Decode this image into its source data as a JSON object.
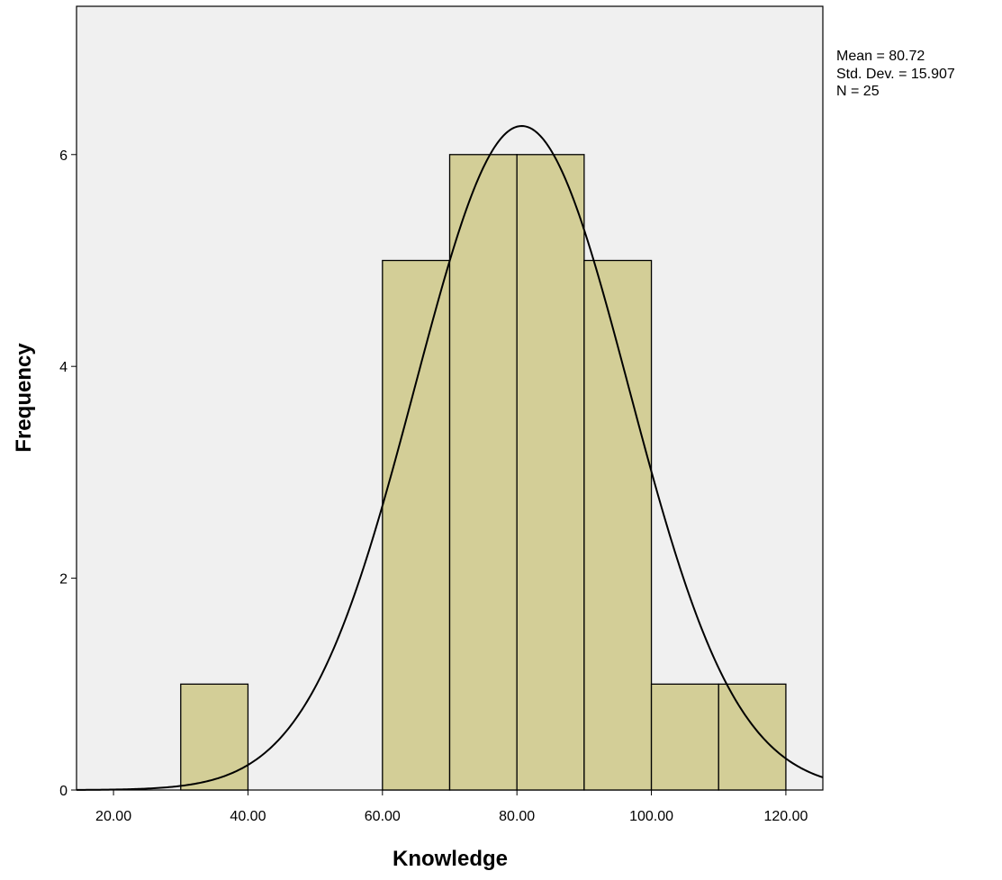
{
  "chart_data": {
    "type": "bar",
    "subtype": "histogram",
    "xlabel": "Knowledge",
    "ylabel": "Frequency",
    "xlim": [
      14.5,
      125.5
    ],
    "ylim": [
      0,
      7.4
    ],
    "x_ticks": [
      20,
      40,
      60,
      80,
      100,
      120
    ],
    "x_tick_labels": [
      "20.00",
      "40.00",
      "60.00",
      "80.00",
      "100.00",
      "120.00"
    ],
    "y_ticks": [
      0,
      2,
      4,
      6
    ],
    "y_tick_labels": [
      "0",
      "2",
      "4",
      "6"
    ],
    "bins": [
      {
        "x0": 30,
        "x1": 40,
        "count": 1
      },
      {
        "x0": 60,
        "x1": 70,
        "count": 5
      },
      {
        "x0": 70,
        "x1": 80,
        "count": 6
      },
      {
        "x0": 80,
        "x1": 90,
        "count": 6
      },
      {
        "x0": 90,
        "x1": 100,
        "count": 5
      },
      {
        "x0": 100,
        "x1": 110,
        "count": 1
      },
      {
        "x0": 110,
        "x1": 120,
        "count": 1
      }
    ],
    "normal_curve": {
      "mean": 80.72,
      "sd": 15.907,
      "n": 25,
      "bin_width": 10
    },
    "stats": [
      "Mean = 80.72",
      "Std. Dev. = 15.907",
      "N = 25"
    ],
    "grid": false,
    "colors": {
      "bar_fill": "#D3CE97",
      "bar_stroke": "#000000",
      "plot_bg": "#F0F0F0",
      "curve": "#000000"
    }
  }
}
